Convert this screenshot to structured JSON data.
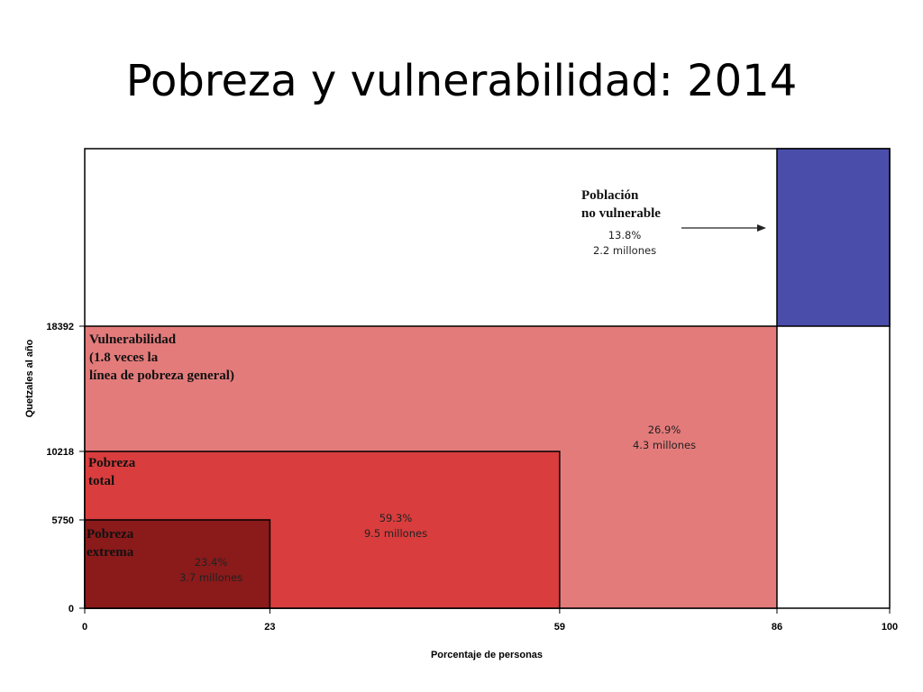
{
  "title": "Pobreza y vulnerabilidad: 2014",
  "chart_data": {
    "type": "area",
    "xlabel": "Porcentaje de personas",
    "ylabel": "Quetzales al año",
    "xlim": [
      0,
      100
    ],
    "x_ticks": [
      "0",
      "23",
      "59",
      "86",
      "100"
    ],
    "y_ticks": [
      "0",
      "5750",
      "10218",
      "18392"
    ],
    "grid": false,
    "colors": {
      "extrema": "#8b1a1a",
      "total": "#d93d3d",
      "vulnerabilidad": "#e47b7b",
      "no_vulnerable": "#4b4dab",
      "outline": "#000000"
    },
    "regions": [
      {
        "key": "vulnerabilidad",
        "x": [
          0,
          86
        ],
        "y": [
          0,
          18392
        ],
        "label_lines": [
          "Vulnerabilidad",
          "(1.8 veces la",
          "línea de pobreza general)"
        ],
        "percent": "26.9%",
        "people": "4.3 millones"
      },
      {
        "key": "total",
        "x": [
          0,
          59
        ],
        "y": [
          0,
          10218
        ],
        "label_lines": [
          "Pobreza",
          "total"
        ],
        "percent": "59.3%",
        "people": "9.5 millones"
      },
      {
        "key": "extrema",
        "x": [
          0,
          23
        ],
        "y": [
          0,
          5750
        ],
        "label_lines": [
          "Pobreza",
          "extrema"
        ],
        "percent": "23.4%",
        "people": "3.7 millones"
      },
      {
        "key": "no_vulnerable",
        "x": [
          86,
          100
        ],
        "y": [
          18392,
          null
        ],
        "label_lines": [
          "Población",
          "no vulnerable"
        ],
        "percent": "13.8%",
        "people": "2.2 millones"
      }
    ]
  }
}
